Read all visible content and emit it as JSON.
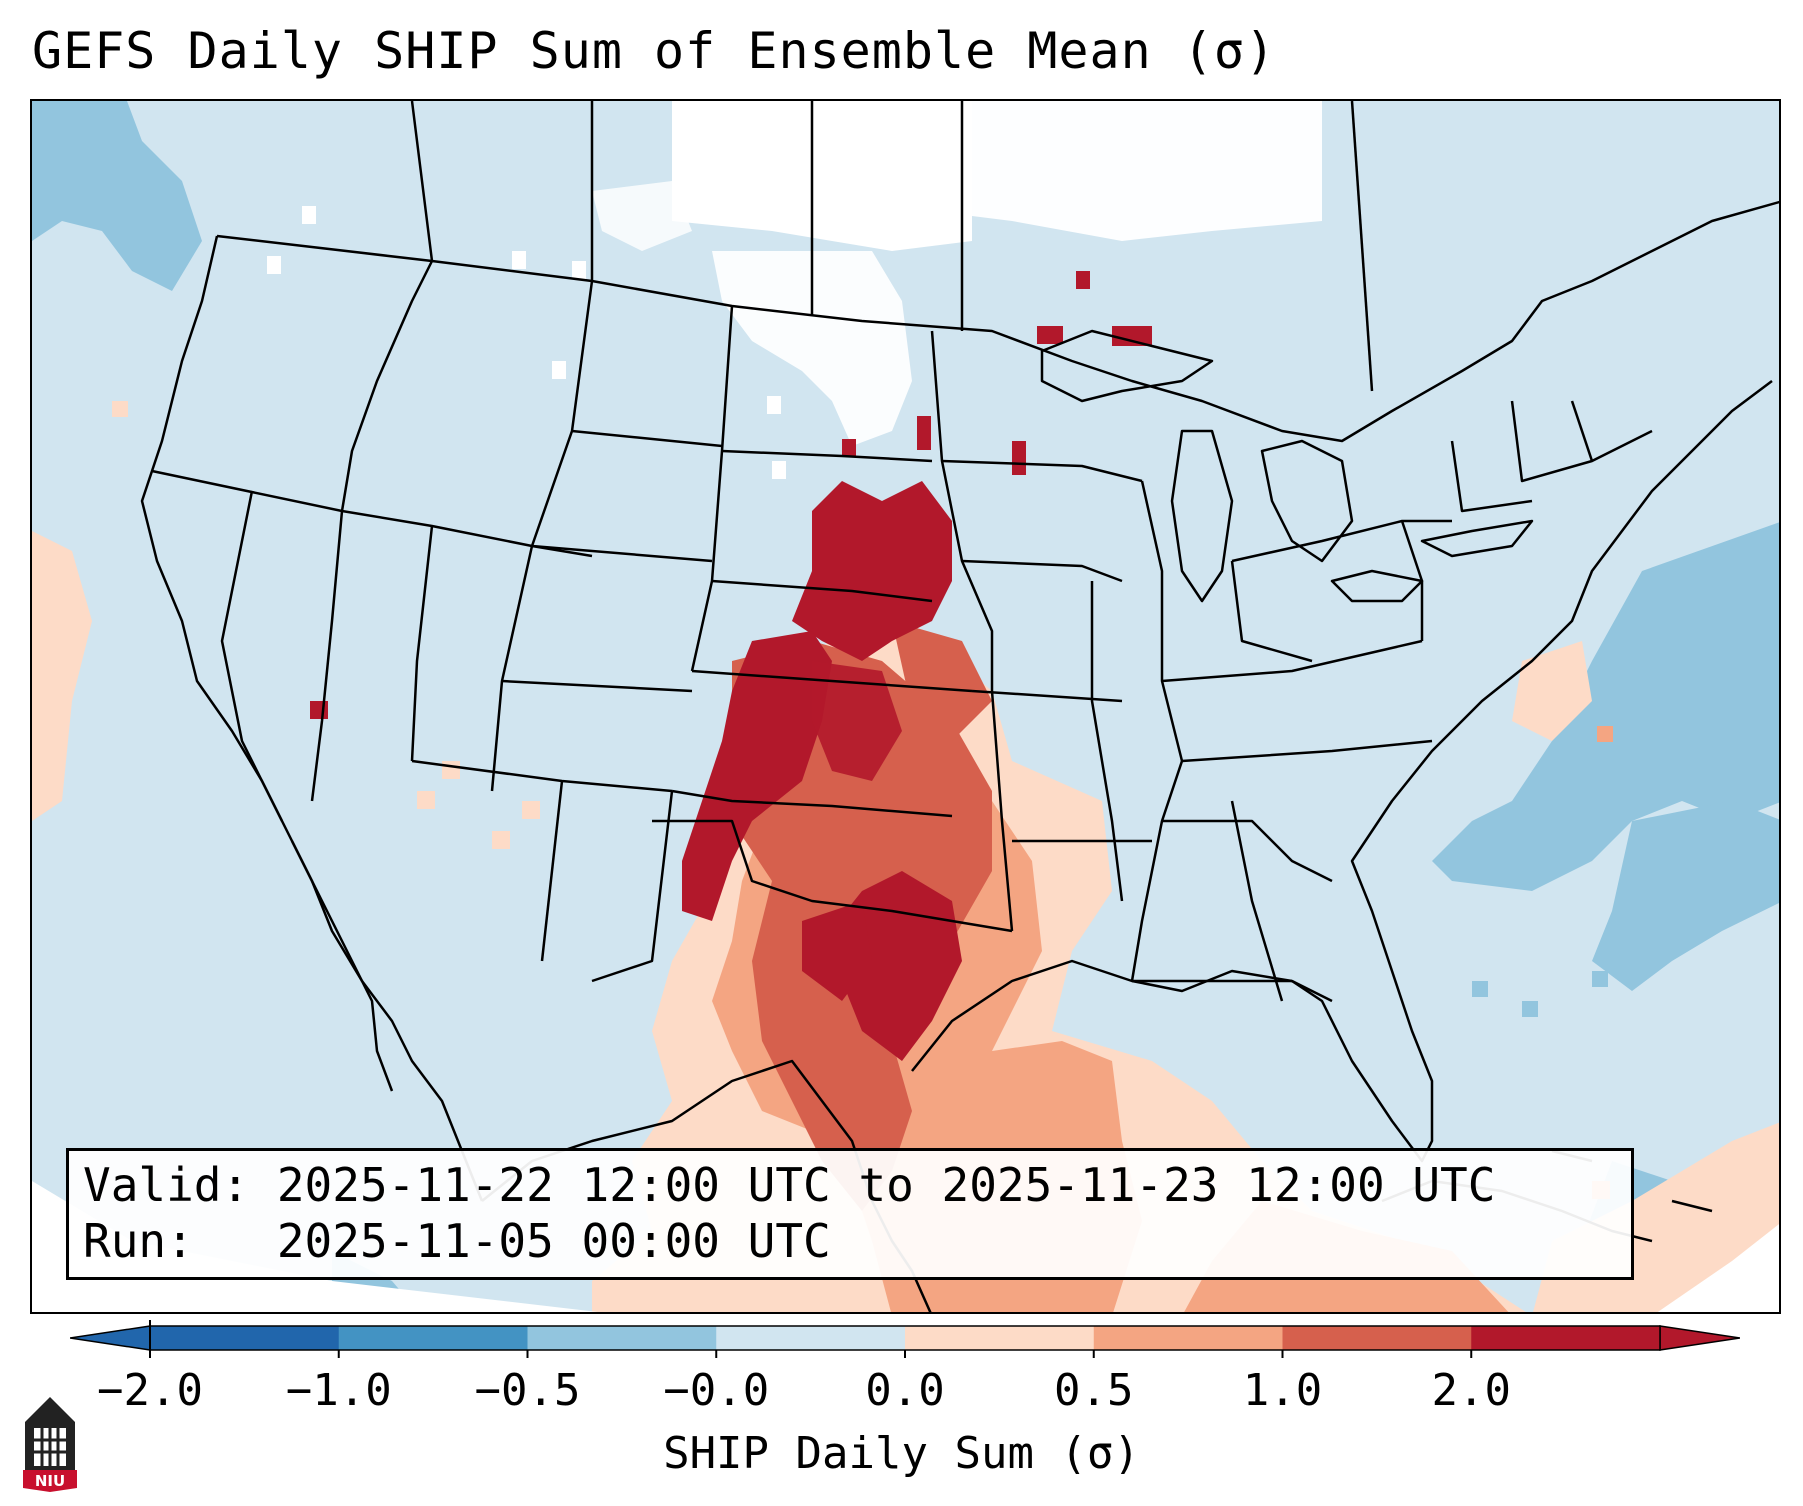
{
  "title": "GEFS Daily SHIP Sum of Ensemble Mean (σ)",
  "info": {
    "valid": "Valid: 2025-11-22 12:00 UTC to 2025-11-23 12:00 UTC",
    "run": "Run:   2025-11-05 00:00 UTC"
  },
  "colorbar": {
    "label": "SHIP Daily Sum (σ)",
    "tick_labels": [
      "−2.0",
      "−1.0",
      "−0.5",
      "−0.0",
      "0.0",
      "0.5",
      "1.0",
      "2.0"
    ],
    "colors": [
      "#2166ac",
      "#4393c3",
      "#92c5de",
      "#d1e5f0",
      "#fddbc7",
      "#f4a582",
      "#d6604d",
      "#b2182b"
    ],
    "extend": "both"
  },
  "map": {
    "ocean_color": "#d1e5f0",
    "land_color": "#d1e5f0",
    "border_color": "#000000"
  },
  "logo": {
    "text": "NIU"
  }
}
